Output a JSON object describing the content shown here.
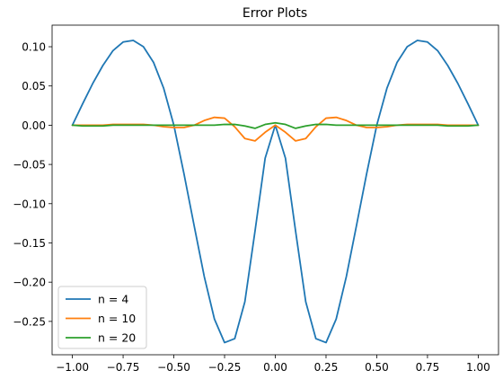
{
  "chart_data": {
    "type": "line",
    "title": "Error Plots",
    "xlabel": "",
    "ylabel": "",
    "xlim": [
      -1.1,
      1.1
    ],
    "ylim": [
      -0.2925,
      0.1275
    ],
    "xticks": [
      -1.0,
      -0.75,
      -0.5,
      -0.25,
      0.0,
      0.25,
      0.5,
      0.75,
      1.0
    ],
    "xtick_labels": [
      "−1.00",
      "−0.75",
      "−0.50",
      "−0.25",
      "0.00",
      "0.25",
      "0.50",
      "0.75",
      "1.00"
    ],
    "yticks": [
      -0.25,
      -0.2,
      -0.15,
      -0.1,
      -0.05,
      0.0,
      0.05,
      0.1
    ],
    "ytick_labels": [
      "−0.25",
      "−0.20",
      "−0.15",
      "−0.10",
      "−0.05",
      "0.00",
      "0.05",
      "0.10"
    ],
    "grid": false,
    "legend_position": "lower-left",
    "series": [
      {
        "name": "n = 4",
        "color": "#1f77b4",
        "x": [
          -1.0,
          -0.95,
          -0.9,
          -0.85,
          -0.8,
          -0.75,
          -0.7,
          -0.65,
          -0.6,
          -0.55,
          -0.5,
          -0.45,
          -0.4,
          -0.35,
          -0.3,
          -0.25,
          -0.2,
          -0.15,
          -0.1,
          -0.05,
          0.0,
          0.05,
          0.1,
          0.15,
          0.2,
          0.25,
          0.3,
          0.35,
          0.4,
          0.45,
          0.5,
          0.55,
          0.6,
          0.65,
          0.7,
          0.75,
          0.8,
          0.85,
          0.9,
          0.95,
          1.0
        ],
        "y": [
          0.0,
          0.027,
          0.053,
          0.076,
          0.095,
          0.106,
          0.108,
          0.1,
          0.08,
          0.047,
          0.0,
          -0.062,
          -0.128,
          -0.193,
          -0.247,
          -0.277,
          -0.272,
          -0.225,
          -0.135,
          -0.042,
          0.0,
          -0.042,
          -0.135,
          -0.225,
          -0.272,
          -0.277,
          -0.247,
          -0.193,
          -0.128,
          -0.062,
          0.0,
          0.047,
          0.08,
          0.1,
          0.108,
          0.106,
          0.095,
          0.076,
          0.053,
          0.027,
          0.0
        ]
      },
      {
        "name": "n = 10",
        "color": "#ff7f0e",
        "x": [
          -1.0,
          -0.95,
          -0.9,
          -0.85,
          -0.8,
          -0.75,
          -0.7,
          -0.65,
          -0.6,
          -0.55,
          -0.5,
          -0.45,
          -0.4,
          -0.35,
          -0.3,
          -0.25,
          -0.2,
          -0.15,
          -0.1,
          -0.05,
          0.0,
          0.05,
          0.1,
          0.15,
          0.2,
          0.25,
          0.3,
          0.35,
          0.4,
          0.45,
          0.5,
          0.55,
          0.6,
          0.65,
          0.7,
          0.75,
          0.8,
          0.85,
          0.9,
          0.95,
          1.0
        ],
        "y": [
          0.0,
          0.0,
          0.0,
          0.0,
          0.001,
          0.001,
          0.001,
          0.001,
          0.0,
          -0.002,
          -0.003,
          -0.003,
          0.0,
          0.006,
          0.01,
          0.009,
          -0.002,
          -0.017,
          -0.02,
          -0.009,
          0.0,
          -0.009,
          -0.02,
          -0.017,
          -0.002,
          0.009,
          0.01,
          0.006,
          0.0,
          -0.003,
          -0.003,
          -0.002,
          0.0,
          0.001,
          0.001,
          0.001,
          0.001,
          0.0,
          0.0,
          0.0,
          0.0
        ]
      },
      {
        "name": "n = 20",
        "color": "#2ca02c",
        "x": [
          -1.0,
          -0.95,
          -0.9,
          -0.85,
          -0.8,
          -0.75,
          -0.7,
          -0.65,
          -0.6,
          -0.55,
          -0.5,
          -0.45,
          -0.4,
          -0.35,
          -0.3,
          -0.25,
          -0.2,
          -0.15,
          -0.1,
          -0.05,
          0.0,
          0.05,
          0.1,
          0.15,
          0.2,
          0.25,
          0.3,
          0.35,
          0.4,
          0.45,
          0.5,
          0.55,
          0.6,
          0.65,
          0.7,
          0.75,
          0.8,
          0.85,
          0.9,
          0.95,
          1.0
        ],
        "y": [
          0.0,
          -0.001,
          -0.001,
          -0.001,
          0.0,
          0.0,
          0.0,
          0.0,
          0.0,
          0.0,
          0.0,
          0.0,
          0.0,
          0.0,
          0.0,
          0.001,
          0.001,
          -0.001,
          -0.004,
          0.001,
          0.003,
          0.001,
          -0.004,
          -0.001,
          0.001,
          0.001,
          0.0,
          0.0,
          0.0,
          0.0,
          0.0,
          0.0,
          0.0,
          0.0,
          0.0,
          0.0,
          0.0,
          -0.001,
          -0.001,
          -0.001,
          0.0
        ]
      }
    ]
  }
}
